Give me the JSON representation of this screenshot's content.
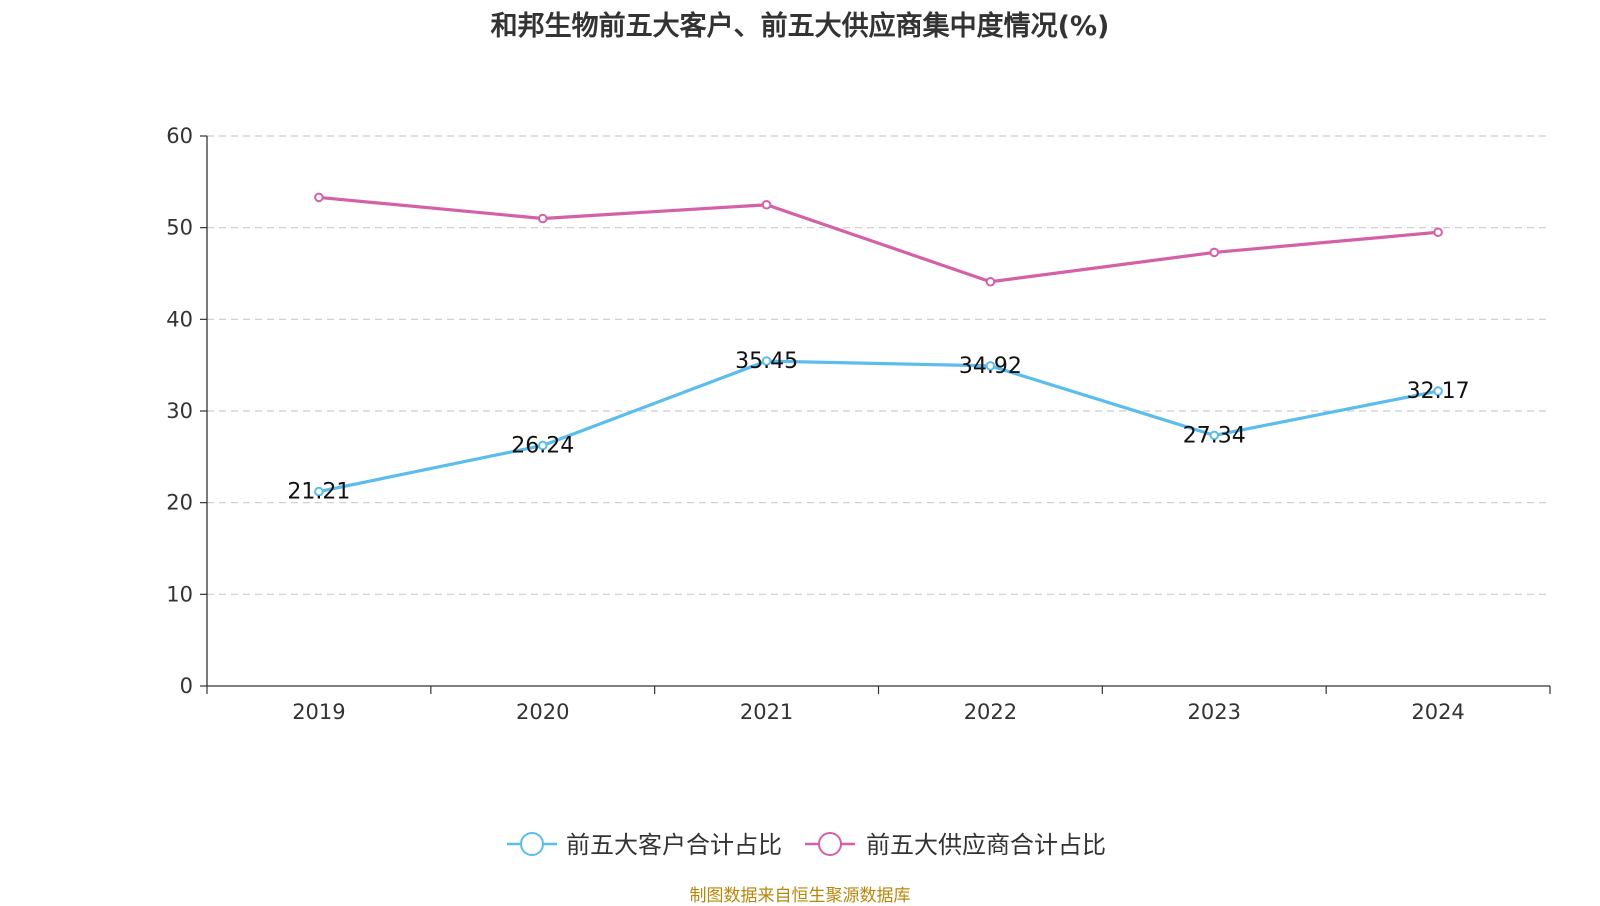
{
  "colors": {
    "customers": "#5bbcee",
    "suppliers": "#d460a8",
    "grid": "#cccccc",
    "axis": "#333333",
    "source": "#b8860b"
  },
  "source_note": "制图数据来自恒生聚源数据库",
  "chart_data": {
    "type": "line",
    "title": "和邦生物前五大客户、前五大供应商集中度情况(%)",
    "xlabel": "",
    "ylabel": "",
    "categories": [
      "2019",
      "2020",
      "2021",
      "2022",
      "2023",
      "2024"
    ],
    "ylim": [
      0,
      60
    ],
    "yticks": [
      "0",
      "10",
      "20",
      "30",
      "40",
      "50",
      "60"
    ],
    "grid": true,
    "legend_position": "bottom-center",
    "series": [
      {
        "name": "前五大客户合计占比",
        "values": [
          21.21,
          26.24,
          35.45,
          34.92,
          27.34,
          32.17
        ],
        "labels": [
          "21.21",
          "26.24",
          "35.45",
          "34.92",
          "27.34",
          "32.17"
        ],
        "show_labels": true
      },
      {
        "name": "前五大供应商合计占比",
        "values": [
          53.3,
          51.0,
          52.5,
          44.1,
          47.3,
          49.5
        ],
        "labels": [],
        "show_labels": false
      }
    ]
  }
}
